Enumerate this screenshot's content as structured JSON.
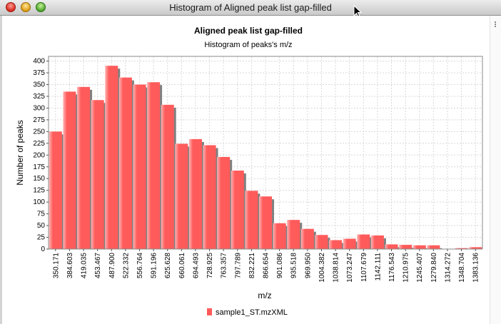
{
  "window": {
    "title": "Histogram of Aligned peak list gap-filled"
  },
  "chart_data": {
    "type": "bar",
    "title": "Aligned peak list gap-filled",
    "subtitle": "Histogram of peaks's m/z",
    "xlabel": "m/z",
    "ylabel": "Number of peaks",
    "ylim": [
      0,
      410
    ],
    "yticks": [
      0,
      25,
      50,
      75,
      100,
      125,
      150,
      175,
      200,
      225,
      250,
      275,
      300,
      325,
      350,
      375,
      400
    ],
    "xticks": [
      "350.171",
      "384.603",
      "419.035",
      "453.467",
      "487.900",
      "522.332",
      "556.764",
      "591.196",
      "625.628",
      "660.061",
      "694.493",
      "728.925",
      "763.357",
      "797.789",
      "832.221",
      "866.654",
      "901.086",
      "935.518",
      "969.950",
      "1004.382",
      "1038.814",
      "1073.247",
      "1107.679",
      "1142.111",
      "1176.543",
      "1210.975",
      "1245.407",
      "1279.840",
      "1314.272",
      "1348.704",
      "1383.136"
    ],
    "grid": true,
    "legend_position": "bottom",
    "series": [
      {
        "name": "sample1_ST.mzXML",
        "color": "#ff5b5b",
        "values": [
          250,
          335,
          345,
          317,
          390,
          365,
          350,
          355,
          307,
          224,
          234,
          221,
          196,
          167,
          124,
          112,
          55,
          62,
          43,
          30,
          19,
          22,
          31,
          29,
          10,
          9,
          8,
          8,
          0,
          2,
          4
        ]
      }
    ]
  }
}
